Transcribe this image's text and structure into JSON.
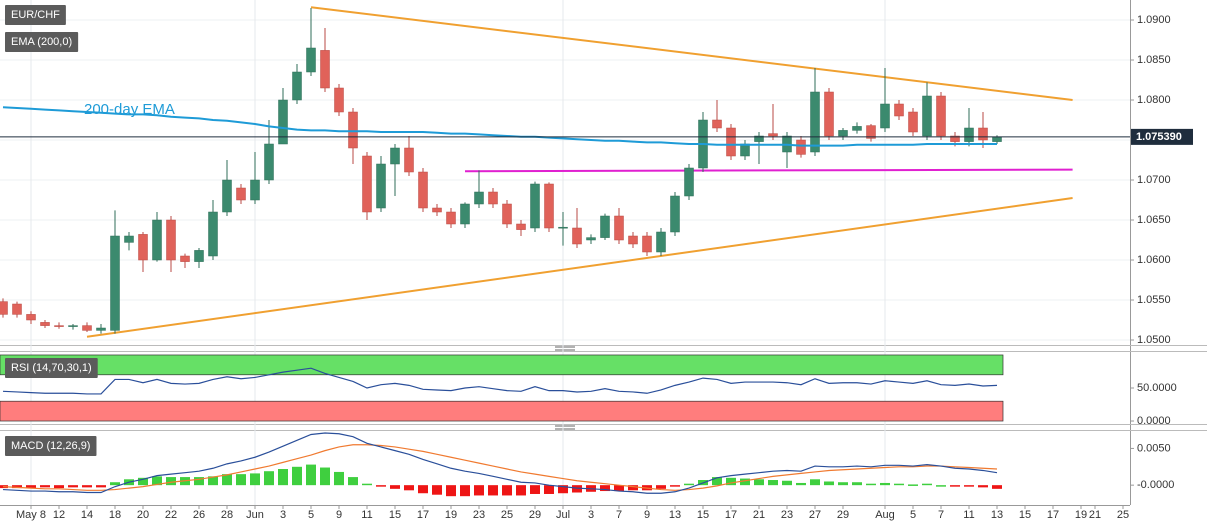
{
  "chart_data": [
    {
      "type": "candlestick",
      "symbol": "EUR/CHF",
      "categories": [
        null,
        null,
        "May 8",
        null,
        "12",
        null,
        "14",
        null,
        "18",
        null,
        "20",
        null,
        "22",
        null,
        "26",
        null,
        "28",
        null,
        "Jun",
        null,
        "3",
        null,
        "5",
        null,
        "9",
        null,
        "11",
        null,
        "15",
        null,
        "17",
        null,
        "19",
        null,
        "23",
        null,
        "25",
        null,
        "29",
        null,
        "Jul",
        null,
        "3",
        null,
        "7",
        null,
        "9",
        null,
        "13",
        null,
        "15",
        null,
        "17",
        null,
        "21",
        null,
        "23",
        null,
        "27",
        null,
        "29",
        null,
        null,
        "Aug",
        null,
        "5",
        null,
        "7",
        null,
        "11",
        null,
        "13",
        null,
        "15",
        null,
        "17",
        null,
        "19",
        "21",
        null,
        "25"
      ],
      "open": [
        1.0548,
        1.0545,
        1.0532,
        1.0522,
        1.0518,
        1.0517,
        1.0518,
        1.0512,
        1.0512,
        1.0622,
        1.0632,
        1.06,
        1.065,
        1.0605,
        1.0598,
        1.0605,
        1.066,
        1.069,
        1.0675,
        1.07,
        1.0745,
        1.08,
        1.0835,
        1.0862,
        1.0815,
        1.0785,
        1.073,
        1.0665,
        1.072,
        1.074,
        1.071,
        1.0665,
        1.066,
        1.0645,
        1.067,
        1.0685,
        1.067,
        1.0645,
        1.064,
        1.0695,
        1.064,
        1.064,
        1.0625,
        1.0628,
        1.0655,
        1.063,
        1.063,
        1.061,
        1.0635,
        1.068,
        1.0715,
        1.0775,
        1.0765,
        1.073,
        1.0748,
        1.0758,
        1.0735,
        1.075,
        1.0735,
        1.081,
        1.0755,
        1.0762,
        1.0768,
        1.0765,
        1.0795,
        1.0785,
        1.0755,
        1.0805,
        1.0755,
        1.0748,
        1.0765,
        1.0748,
        null,
        null,
        null,
        null,
        null,
        null,
        null,
        null,
        null
      ],
      "high": [
        1.0552,
        1.0548,
        1.0536,
        1.0525,
        1.0522,
        1.052,
        1.0522,
        1.052,
        1.0662,
        1.0635,
        1.0635,
        1.066,
        1.0655,
        1.0608,
        1.0615,
        1.0675,
        1.0725,
        1.0695,
        1.0735,
        1.0775,
        1.0815,
        1.0845,
        1.0915,
        1.089,
        1.082,
        1.079,
        1.0735,
        1.073,
        1.0745,
        1.0755,
        1.0715,
        1.067,
        1.0665,
        1.0672,
        1.0712,
        1.069,
        1.0675,
        1.065,
        1.0698,
        1.0697,
        1.066,
        1.0665,
        1.0632,
        1.0658,
        1.0665,
        1.0635,
        1.0635,
        1.064,
        1.0685,
        1.072,
        1.0785,
        1.08,
        1.077,
        1.075,
        1.076,
        1.0795,
        1.076,
        1.0755,
        1.084,
        1.0815,
        1.0765,
        1.0772,
        1.077,
        1.084,
        1.08,
        1.079,
        1.0822,
        1.081,
        1.076,
        1.079,
        1.0785,
        1.0756,
        null,
        null,
        null,
        null,
        null,
        null,
        null,
        null,
        null
      ],
      "low": [
        1.0528,
        1.0528,
        1.052,
        1.0515,
        1.0514,
        1.0513,
        1.051,
        1.0508,
        1.0508,
        1.0612,
        1.0585,
        1.0598,
        1.0585,
        1.059,
        1.059,
        1.06,
        1.0655,
        1.067,
        1.067,
        1.0695,
        1.0745,
        1.0795,
        1.083,
        1.081,
        1.078,
        1.072,
        1.065,
        1.066,
        1.068,
        1.0705,
        1.066,
        1.0655,
        1.064,
        1.064,
        1.0665,
        1.0665,
        1.064,
        1.063,
        1.0635,
        1.0635,
        1.0618,
        1.0615,
        1.062,
        1.0625,
        1.062,
        1.0615,
        1.0605,
        1.0605,
        1.063,
        1.0675,
        1.071,
        1.076,
        1.0725,
        1.0725,
        1.072,
        1.075,
        1.0715,
        1.0728,
        1.073,
        1.075,
        1.075,
        1.0758,
        1.0748,
        1.076,
        1.0775,
        1.0755,
        1.075,
        1.075,
        1.0742,
        1.0742,
        1.074,
        1.0745,
        null,
        null,
        null,
        null,
        null,
        null,
        null,
        null,
        null
      ],
      "close": [
        1.0532,
        1.0532,
        1.0525,
        1.0518,
        1.0517,
        1.0518,
        1.0512,
        1.0515,
        1.063,
        1.063,
        1.06,
        1.065,
        1.06,
        1.0598,
        1.0612,
        1.066,
        1.07,
        1.0675,
        1.07,
        1.0745,
        1.08,
        1.0835,
        1.0865,
        1.0815,
        1.0785,
        1.074,
        1.066,
        1.072,
        1.074,
        1.071,
        1.0665,
        1.066,
        1.0645,
        1.067,
        1.0685,
        1.067,
        1.0645,
        1.0638,
        1.0695,
        1.064,
        1.0641,
        1.062,
        1.0628,
        1.0655,
        1.0625,
        1.062,
        1.061,
        1.0635,
        1.068,
        1.0715,
        1.0775,
        1.0765,
        1.073,
        1.0745,
        1.0755,
        1.0755,
        1.0755,
        1.0732,
        1.081,
        1.0755,
        1.0762,
        1.0767,
        1.0752,
        1.0795,
        1.078,
        1.076,
        1.0805,
        1.0755,
        1.0748,
        1.0765,
        1.075,
        1.0754,
        null,
        null,
        null,
        null,
        null,
        null,
        null,
        null,
        null
      ],
      "up_color": "#3b8a6e",
      "down_color": "#e0625a",
      "series": [
        {
          "name": "EMA (200,0)",
          "color": "#1e9bd7",
          "values": [
            1.0791,
            1.079,
            1.0789,
            1.0788,
            1.0787,
            1.0786,
            1.0785,
            1.0784,
            1.0783,
            1.0782,
            1.0782,
            1.0781,
            1.0779,
            1.0778,
            1.0777,
            1.0775,
            1.0774,
            1.0772,
            1.077,
            1.0767,
            1.0765,
            1.0763,
            1.0762,
            1.0762,
            1.0761,
            1.0761,
            1.0761,
            1.076,
            1.076,
            1.076,
            1.076,
            1.0759,
            1.0758,
            1.0758,
            1.0757,
            1.0756,
            1.0755,
            1.0754,
            1.0754,
            1.0753,
            1.0752,
            1.0751,
            1.075,
            1.0749,
            1.0749,
            1.0748,
            1.0747,
            1.0747,
            1.0746,
            1.0745,
            1.0745,
            1.0744,
            1.0744,
            1.0744,
            1.0744,
            1.0744,
            1.0744,
            1.0743,
            1.0743,
            1.0743,
            1.0743,
            1.0744,
            1.0744,
            1.0744,
            1.0744,
            1.0744,
            1.0745,
            1.0745,
            1.0745,
            1.0745,
            1.0745,
            1.0745,
            null,
            null,
            null,
            null,
            null,
            null,
            null,
            null,
            null
          ]
        }
      ],
      "annotation": "200-day EMA",
      "trendlines": [
        {
          "color": "#f0a030",
          "x": [
            22,
            76.4
          ],
          "y": [
            1.0916,
            1.08
          ]
        },
        {
          "color": "#f0a030",
          "x": [
            6,
            76.4
          ],
          "y": [
            1.0504,
            1.06775
          ]
        },
        {
          "color": "#e020d0",
          "x": [
            33,
            76.4
          ],
          "y": [
            1.0711,
            1.0713
          ]
        }
      ],
      "current_price": {
        "value": 1.07539,
        "label": "1.075390"
      },
      "ylim": [
        1.049375,
        1.0925
      ],
      "yticks": [
        {
          "value": 1.05,
          "label": "1.0500"
        },
        {
          "value": 1.055,
          "label": "1.0550"
        },
        {
          "value": 1.06,
          "label": "1.0600"
        },
        {
          "value": 1.065,
          "label": "1.0650"
        },
        {
          "value": 1.07,
          "label": "1.0700"
        },
        {
          "value": 1.075,
          "label": "1.0750"
        },
        {
          "value": 1.08,
          "label": "1.0800"
        },
        {
          "value": 1.085,
          "label": "1.0850"
        },
        {
          "value": 1.09,
          "label": "1.0900"
        }
      ],
      "grid": true
    },
    {
      "type": "line",
      "title": "RSI (14,70,30,1)",
      "color": "#2a4f9a",
      "values": [
        45,
        44,
        43,
        42,
        42,
        42,
        41,
        41,
        63,
        63,
        58,
        63,
        57,
        56,
        57,
        63,
        67,
        64,
        66,
        70,
        74,
        77,
        80,
        72,
        66,
        60,
        50,
        55,
        57,
        54,
        48,
        47,
        46,
        50,
        52,
        49,
        46,
        45,
        52,
        46,
        46,
        44,
        45,
        49,
        45,
        44,
        42,
        47,
        54,
        59,
        65,
        63,
        57,
        59,
        59,
        59,
        58,
        55,
        64,
        57,
        58,
        58,
        56,
        61,
        59,
        57,
        61,
        55,
        54,
        56,
        53,
        54,
        null,
        null,
        null,
        null,
        null,
        null,
        null,
        null,
        null
      ],
      "bands": [
        {
          "from": 70,
          "to": 100,
          "color": "#66e066"
        },
        {
          "from": 0,
          "to": 30,
          "color": "#ff7d7d"
        }
      ],
      "ylim": [
        -3,
        103
      ],
      "yticks": [
        {
          "value": 50,
          "label": "50.0000"
        },
        {
          "value": 0,
          "label": "0.0000"
        }
      ]
    },
    {
      "type": "macd",
      "title": "MACD (12,26,9)",
      "macd": {
        "color": "#2a4f9a",
        "values": [
          -0.0006,
          -0.0007,
          -0.0008,
          -0.0008,
          -0.0009,
          -0.0009,
          -0.001,
          -0.001,
          -0.0002,
          0.0004,
          0.0008,
          0.0013,
          0.0015,
          0.0017,
          0.0019,
          0.0023,
          0.0029,
          0.0033,
          0.0038,
          0.0045,
          0.0053,
          0.0061,
          0.0069,
          0.0071,
          0.007,
          0.0066,
          0.0057,
          0.0052,
          0.0047,
          0.0042,
          0.0035,
          0.0029,
          0.0023,
          0.0019,
          0.0016,
          0.0012,
          0.0008,
          0.0004,
          0.0003,
          0.0,
          -0.0002,
          -0.0004,
          -0.0005,
          -0.0006,
          -0.0008,
          -0.0009,
          -0.0011,
          -0.0011,
          -0.0009,
          -0.0004,
          0.0003,
          0.001,
          0.0013,
          0.0015,
          0.0017,
          0.0019,
          0.002,
          0.0019,
          0.0026,
          0.0025,
          0.0025,
          0.0026,
          0.0025,
          0.0027,
          0.0027,
          0.0026,
          0.0028,
          0.0026,
          0.0023,
          0.0022,
          0.002,
          0.0017,
          null,
          null,
          null,
          null,
          null,
          null,
          null,
          null,
          null
        ]
      },
      "signal": {
        "color": "#f07a30",
        "values": [
          -0.0002,
          -0.0003,
          -0.0004,
          -0.0005,
          -0.0005,
          -0.0006,
          -0.0007,
          -0.0007,
          -0.0006,
          -0.0004,
          -0.0002,
          0.0001,
          0.0004,
          0.0006,
          0.0008,
          0.0011,
          0.0014,
          0.0018,
          0.0022,
          0.0026,
          0.0031,
          0.0036,
          0.0041,
          0.0047,
          0.0052,
          0.0055,
          0.0055,
          0.0054,
          0.0052,
          0.0049,
          0.0046,
          0.0042,
          0.0038,
          0.0034,
          0.003,
          0.0026,
          0.0022,
          0.0018,
          0.0015,
          0.0012,
          0.0009,
          0.0006,
          0.0004,
          0.0002,
          0.0,
          -0.0002,
          -0.0004,
          -0.0006,
          -0.0007,
          -0.0006,
          -0.0004,
          -0.0001,
          0.0003,
          0.0006,
          0.0009,
          0.0012,
          0.0014,
          0.0016,
          0.0018,
          0.002,
          0.0021,
          0.0022,
          0.0023,
          0.0024,
          0.0025,
          0.0025,
          0.0026,
          0.0026,
          0.0025,
          0.0024,
          0.0023,
          0.0022,
          null,
          null,
          null,
          null,
          null,
          null,
          null,
          null,
          null
        ]
      },
      "histogram": {
        "up_color": "#3fcf3f",
        "down_color": "#ee1515",
        "values": [
          -0.0004,
          -0.0004,
          -0.0004,
          -0.0003,
          -0.0004,
          -0.0003,
          -0.0003,
          -0.0003,
          0.0004,
          0.0008,
          0.001,
          0.0012,
          0.0011,
          0.0011,
          0.0011,
          0.0012,
          0.0015,
          0.0015,
          0.0016,
          0.0019,
          0.0022,
          0.0025,
          0.0028,
          0.0024,
          0.0018,
          0.0011,
          0.0002,
          -0.0002,
          -0.0005,
          -0.0007,
          -0.0011,
          -0.0013,
          -0.0015,
          -0.0015,
          -0.0014,
          -0.0014,
          -0.0014,
          -0.0014,
          -0.0012,
          -0.0012,
          -0.0011,
          -0.001,
          -0.0009,
          -0.0008,
          -0.0008,
          -0.0007,
          -0.0007,
          -0.0005,
          -0.0002,
          0.0002,
          0.0007,
          0.0011,
          0.001,
          0.0009,
          0.0008,
          0.0007,
          0.0006,
          0.0003,
          0.0008,
          0.0005,
          0.0004,
          0.0004,
          0.0002,
          0.0003,
          0.0002,
          0.0001,
          0.0002,
          0.0,
          -0.0002,
          -0.0002,
          -0.0003,
          -0.0005,
          null,
          null,
          null,
          null,
          null,
          null,
          null,
          null,
          null
        ]
      },
      "ylim": [
        -0.0027,
        0.0071
      ],
      "yticks": [
        {
          "value": 0.005,
          "label": "0.0050"
        },
        {
          "value": 0,
          "label": "-0.0000"
        }
      ]
    }
  ]
}
